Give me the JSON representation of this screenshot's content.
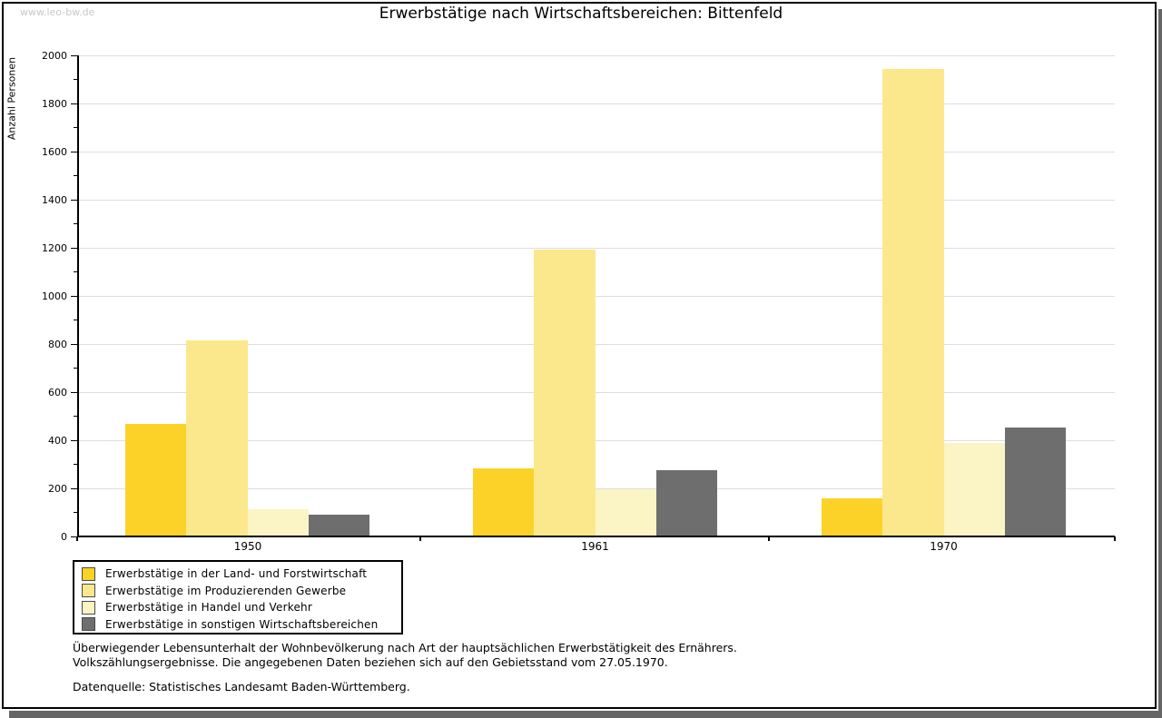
{
  "watermark": "www.leo-bw.de",
  "title": "Erwerbstätige nach Wirtschaftsbereichen: Bittenfeld",
  "chart_data": {
    "type": "bar",
    "title": "Erwerbstätige nach Wirtschaftsbereichen: Bittenfeld",
    "xlabel": "",
    "ylabel": "Anzahl Personen",
    "categories": [
      "1950",
      "1961",
      "1970"
    ],
    "series": [
      {
        "name": "Erwerbstätige in der Land- und Forstwirtschaft",
        "color": "#FCD228",
        "values": [
          465,
          280,
          155
        ]
      },
      {
        "name": "Erwerbstätige im Produzierenden Gewerbe",
        "color": "#FCE88C",
        "values": [
          815,
          1190,
          1940
        ]
      },
      {
        "name": "Erwerbstätige in Handel und Verkehr",
        "color": "#FBF4C4",
        "values": [
          110,
          195,
          385
        ]
      },
      {
        "name": "Erwerbstätige in sonstigen Wirtschaftsbereichen",
        "color": "#6E6E6E",
        "values": [
          90,
          275,
          450
        ]
      }
    ],
    "ylim": [
      0,
      2000
    ],
    "ytick_major_step": 200,
    "ytick_minor_step": 100,
    "grid": true,
    "legend_position": "bottom-left"
  },
  "footnotes": {
    "line1": "Überwiegender Lebensunterhalt der Wohnbevölkerung nach Art der hauptsächlichen Erwerbstätigkeit des Ernährers.",
    "line2": "Volkszählungsergebnisse. Die angegebenen Daten beziehen sich auf den Gebietsstand vom 27.05.1970.",
    "source": "Datenquelle: Statistisches Landesamt Baden-Württemberg."
  },
  "colors": {
    "grid": "#DEDEDE",
    "axis": "#000000",
    "shadow": "#666666",
    "watermark": "#C9C9C9",
    "legend_swatch_border": "#4A4A4A"
  }
}
